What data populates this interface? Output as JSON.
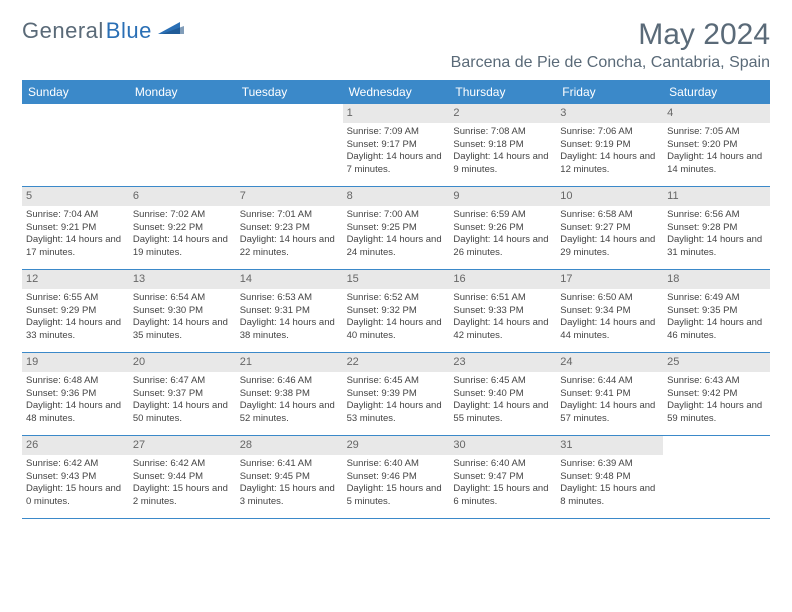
{
  "brand": {
    "part1": "General",
    "part2": "Blue"
  },
  "title": "May 2024",
  "location": "Barcena de Pie de Concha, Cantabria, Spain",
  "colors": {
    "header_bg": "#3b89c9",
    "header_text": "#ffffff",
    "daynum_bg": "#e8e8e8",
    "border": "#3b89c9",
    "title_color": "#5a6a78",
    "brand_blue": "#2a6fb5"
  },
  "weekdays": [
    "Sunday",
    "Monday",
    "Tuesday",
    "Wednesday",
    "Thursday",
    "Friday",
    "Saturday"
  ],
  "weeks": [
    [
      {
        "day": "",
        "lines": []
      },
      {
        "day": "",
        "lines": []
      },
      {
        "day": "",
        "lines": []
      },
      {
        "day": "1",
        "lines": [
          "Sunrise: 7:09 AM",
          "Sunset: 9:17 PM",
          "Daylight: 14 hours and 7 minutes."
        ]
      },
      {
        "day": "2",
        "lines": [
          "Sunrise: 7:08 AM",
          "Sunset: 9:18 PM",
          "Daylight: 14 hours and 9 minutes."
        ]
      },
      {
        "day": "3",
        "lines": [
          "Sunrise: 7:06 AM",
          "Sunset: 9:19 PM",
          "Daylight: 14 hours and 12 minutes."
        ]
      },
      {
        "day": "4",
        "lines": [
          "Sunrise: 7:05 AM",
          "Sunset: 9:20 PM",
          "Daylight: 14 hours and 14 minutes."
        ]
      }
    ],
    [
      {
        "day": "5",
        "lines": [
          "Sunrise: 7:04 AM",
          "Sunset: 9:21 PM",
          "Daylight: 14 hours and 17 minutes."
        ]
      },
      {
        "day": "6",
        "lines": [
          "Sunrise: 7:02 AM",
          "Sunset: 9:22 PM",
          "Daylight: 14 hours and 19 minutes."
        ]
      },
      {
        "day": "7",
        "lines": [
          "Sunrise: 7:01 AM",
          "Sunset: 9:23 PM",
          "Daylight: 14 hours and 22 minutes."
        ]
      },
      {
        "day": "8",
        "lines": [
          "Sunrise: 7:00 AM",
          "Sunset: 9:25 PM",
          "Daylight: 14 hours and 24 minutes."
        ]
      },
      {
        "day": "9",
        "lines": [
          "Sunrise: 6:59 AM",
          "Sunset: 9:26 PM",
          "Daylight: 14 hours and 26 minutes."
        ]
      },
      {
        "day": "10",
        "lines": [
          "Sunrise: 6:58 AM",
          "Sunset: 9:27 PM",
          "Daylight: 14 hours and 29 minutes."
        ]
      },
      {
        "day": "11",
        "lines": [
          "Sunrise: 6:56 AM",
          "Sunset: 9:28 PM",
          "Daylight: 14 hours and 31 minutes."
        ]
      }
    ],
    [
      {
        "day": "12",
        "lines": [
          "Sunrise: 6:55 AM",
          "Sunset: 9:29 PM",
          "Daylight: 14 hours and 33 minutes."
        ]
      },
      {
        "day": "13",
        "lines": [
          "Sunrise: 6:54 AM",
          "Sunset: 9:30 PM",
          "Daylight: 14 hours and 35 minutes."
        ]
      },
      {
        "day": "14",
        "lines": [
          "Sunrise: 6:53 AM",
          "Sunset: 9:31 PM",
          "Daylight: 14 hours and 38 minutes."
        ]
      },
      {
        "day": "15",
        "lines": [
          "Sunrise: 6:52 AM",
          "Sunset: 9:32 PM",
          "Daylight: 14 hours and 40 minutes."
        ]
      },
      {
        "day": "16",
        "lines": [
          "Sunrise: 6:51 AM",
          "Sunset: 9:33 PM",
          "Daylight: 14 hours and 42 minutes."
        ]
      },
      {
        "day": "17",
        "lines": [
          "Sunrise: 6:50 AM",
          "Sunset: 9:34 PM",
          "Daylight: 14 hours and 44 minutes."
        ]
      },
      {
        "day": "18",
        "lines": [
          "Sunrise: 6:49 AM",
          "Sunset: 9:35 PM",
          "Daylight: 14 hours and 46 minutes."
        ]
      }
    ],
    [
      {
        "day": "19",
        "lines": [
          "Sunrise: 6:48 AM",
          "Sunset: 9:36 PM",
          "Daylight: 14 hours and 48 minutes."
        ]
      },
      {
        "day": "20",
        "lines": [
          "Sunrise: 6:47 AM",
          "Sunset: 9:37 PM",
          "Daylight: 14 hours and 50 minutes."
        ]
      },
      {
        "day": "21",
        "lines": [
          "Sunrise: 6:46 AM",
          "Sunset: 9:38 PM",
          "Daylight: 14 hours and 52 minutes."
        ]
      },
      {
        "day": "22",
        "lines": [
          "Sunrise: 6:45 AM",
          "Sunset: 9:39 PM",
          "Daylight: 14 hours and 53 minutes."
        ]
      },
      {
        "day": "23",
        "lines": [
          "Sunrise: 6:45 AM",
          "Sunset: 9:40 PM",
          "Daylight: 14 hours and 55 minutes."
        ]
      },
      {
        "day": "24",
        "lines": [
          "Sunrise: 6:44 AM",
          "Sunset: 9:41 PM",
          "Daylight: 14 hours and 57 minutes."
        ]
      },
      {
        "day": "25",
        "lines": [
          "Sunrise: 6:43 AM",
          "Sunset: 9:42 PM",
          "Daylight: 14 hours and 59 minutes."
        ]
      }
    ],
    [
      {
        "day": "26",
        "lines": [
          "Sunrise: 6:42 AM",
          "Sunset: 9:43 PM",
          "Daylight: 15 hours and 0 minutes."
        ]
      },
      {
        "day": "27",
        "lines": [
          "Sunrise: 6:42 AM",
          "Sunset: 9:44 PM",
          "Daylight: 15 hours and 2 minutes."
        ]
      },
      {
        "day": "28",
        "lines": [
          "Sunrise: 6:41 AM",
          "Sunset: 9:45 PM",
          "Daylight: 15 hours and 3 minutes."
        ]
      },
      {
        "day": "29",
        "lines": [
          "Sunrise: 6:40 AM",
          "Sunset: 9:46 PM",
          "Daylight: 15 hours and 5 minutes."
        ]
      },
      {
        "day": "30",
        "lines": [
          "Sunrise: 6:40 AM",
          "Sunset: 9:47 PM",
          "Daylight: 15 hours and 6 minutes."
        ]
      },
      {
        "day": "31",
        "lines": [
          "Sunrise: 6:39 AM",
          "Sunset: 9:48 PM",
          "Daylight: 15 hours and 8 minutes."
        ]
      },
      {
        "day": "",
        "lines": []
      }
    ]
  ]
}
